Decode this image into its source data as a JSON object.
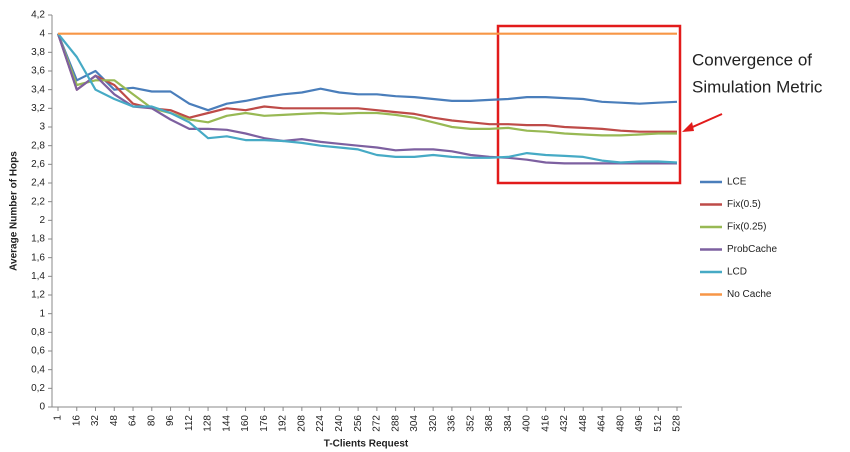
{
  "chart_data": {
    "type": "line",
    "x_label": "T-Clients Request",
    "y_label": "Average Number of Hops",
    "categories": [
      1,
      16,
      32,
      48,
      64,
      80,
      96,
      112,
      128,
      144,
      160,
      176,
      192,
      208,
      224,
      240,
      256,
      272,
      288,
      304,
      320,
      336,
      352,
      368,
      384,
      400,
      416,
      432,
      448,
      464,
      480,
      496,
      512,
      528
    ],
    "series": [
      {
        "name": "LCE",
        "color": "#4a7ebb",
        "values": [
          4,
          3.5,
          3.6,
          3.4,
          3.42,
          3.38,
          3.38,
          3.25,
          3.18,
          3.25,
          3.28,
          3.32,
          3.35,
          3.37,
          3.41,
          3.37,
          3.35,
          3.35,
          3.33,
          3.32,
          3.3,
          3.28,
          3.28,
          3.29,
          3.3,
          3.32,
          3.32,
          3.31,
          3.3,
          3.27,
          3.26,
          3.25,
          3.26,
          3.27
        ]
      },
      {
        "name": "Fix(0.5)",
        "color": "#be4b48",
        "values": [
          4,
          3.4,
          3.55,
          3.45,
          3.25,
          3.2,
          3.18,
          3.1,
          3.15,
          3.2,
          3.18,
          3.22,
          3.2,
          3.2,
          3.2,
          3.2,
          3.2,
          3.18,
          3.16,
          3.14,
          3.1,
          3.07,
          3.05,
          3.03,
          3.03,
          3.02,
          3.02,
          3.0,
          2.99,
          2.98,
          2.96,
          2.95,
          2.95,
          2.95
        ]
      },
      {
        "name": "Fix(0.25)",
        "color": "#98b954",
        "values": [
          4,
          3.45,
          3.5,
          3.5,
          3.35,
          3.2,
          3.15,
          3.08,
          3.05,
          3.12,
          3.15,
          3.12,
          3.13,
          3.14,
          3.15,
          3.14,
          3.15,
          3.15,
          3.13,
          3.1,
          3.05,
          3.0,
          2.98,
          2.98,
          2.99,
          2.96,
          2.95,
          2.93,
          2.92,
          2.91,
          2.91,
          2.92,
          2.93,
          2.93
        ]
      },
      {
        "name": "ProbCache",
        "color": "#7d60a0",
        "values": [
          4,
          3.4,
          3.55,
          3.35,
          3.22,
          3.2,
          3.08,
          2.98,
          2.98,
          2.97,
          2.93,
          2.88,
          2.85,
          2.87,
          2.84,
          2.82,
          2.8,
          2.78,
          2.75,
          2.76,
          2.76,
          2.74,
          2.7,
          2.68,
          2.67,
          2.65,
          2.62,
          2.61,
          2.61,
          2.61,
          2.61,
          2.61,
          2.61,
          2.61
        ]
      },
      {
        "name": "LCD",
        "color": "#46aac5",
        "values": [
          4,
          3.75,
          3.4,
          3.3,
          3.22,
          3.22,
          3.15,
          3.05,
          2.88,
          2.9,
          2.86,
          2.86,
          2.85,
          2.83,
          2.8,
          2.78,
          2.76,
          2.7,
          2.68,
          2.68,
          2.7,
          2.68,
          2.67,
          2.67,
          2.68,
          2.72,
          2.7,
          2.69,
          2.68,
          2.64,
          2.62,
          2.63,
          2.63,
          2.62
        ]
      },
      {
        "name": "No Cache",
        "color": "#f79646",
        "values": [
          4,
          4,
          4,
          4,
          4,
          4,
          4,
          4,
          4,
          4,
          4,
          4,
          4,
          4,
          4,
          4,
          4,
          4,
          4,
          4,
          4,
          4,
          4,
          4,
          4,
          4,
          4,
          4,
          4,
          4,
          4,
          4,
          4,
          4
        ]
      }
    ],
    "ylim": [
      0,
      4.2
    ],
    "yticks": [
      0,
      {
        "value": 0.2,
        "label": "0,2"
      },
      {
        "value": 0.4,
        "label": "0,4"
      },
      {
        "value": 0.6,
        "label": "0,6"
      },
      {
        "value": 0.8,
        "label": "0,8"
      },
      1,
      {
        "value": 1.2,
        "label": "1,2"
      },
      {
        "value": 1.4,
        "label": "1,4"
      },
      {
        "value": 1.6,
        "label": "1,6"
      },
      {
        "value": 1.8,
        "label": "1,8"
      },
      2,
      {
        "value": 2.2,
        "label": "2,2"
      },
      {
        "value": 2.4,
        "label": "2,4"
      },
      {
        "value": 2.6,
        "label": "2,6"
      },
      {
        "value": 2.8,
        "label": "2,8"
      },
      3,
      {
        "value": 3.2,
        "label": "3,2"
      },
      {
        "value": 3.4,
        "label": "3,4"
      },
      {
        "value": 3.6,
        "label": "3,6"
      },
      {
        "value": 3.8,
        "label": "3,8"
      },
      4,
      {
        "value": 4.2,
        "label": "4,2"
      }
    ],
    "grid": false,
    "legend": "right",
    "annotations": [
      "Convergence of",
      "Simulation Metric"
    ]
  }
}
